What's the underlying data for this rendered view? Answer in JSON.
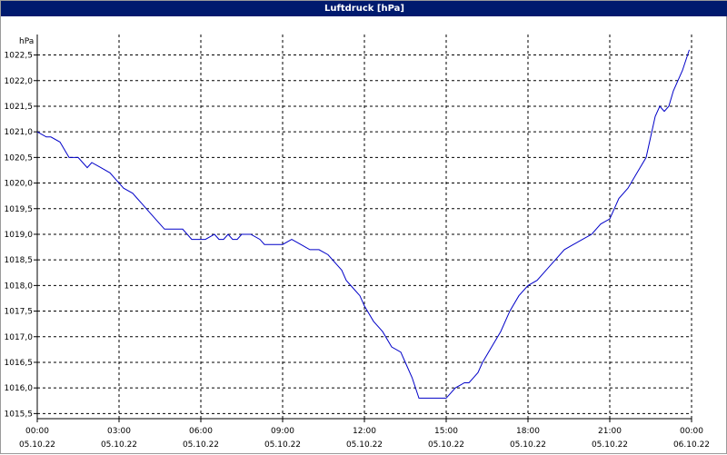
{
  "colors": {
    "titlebar_bg": "#001a6e",
    "line": "#0000c8",
    "grid": "#000000"
  },
  "chart_data": {
    "type": "line",
    "title": "Luftdruck [hPa]",
    "ylabel": "hPa",
    "grid": true,
    "ylim": [
      1015.5,
      1022.5
    ],
    "y_ticks": [
      "1015,5",
      "1016,0",
      "1016,5",
      "1017,0",
      "1017,5",
      "1018,0",
      "1018,5",
      "1019,0",
      "1019,5",
      "1020,0",
      "1020,5",
      "1021,0",
      "1021,5",
      "1022,0",
      "1022,5"
    ],
    "x_ticks": [
      {
        "time": "00:00",
        "date": "05.10.22"
      },
      {
        "time": "03:00",
        "date": "05.10.22"
      },
      {
        "time": "06:00",
        "date": "05.10.22"
      },
      {
        "time": "09:00",
        "date": "05.10.22"
      },
      {
        "time": "12:00",
        "date": "05.10.22"
      },
      {
        "time": "15:00",
        "date": "05.10.22"
      },
      {
        "time": "18:00",
        "date": "05.10.22"
      },
      {
        "time": "21:00",
        "date": "05.10.22"
      },
      {
        "time": "00:00",
        "date": "06.10.22"
      }
    ],
    "series": [
      {
        "x": [
          "00:00",
          "00:20",
          "00:30",
          "00:50",
          "01:10",
          "01:30",
          "01:50",
          "02:00",
          "02:20",
          "02:40",
          "03:00",
          "03:10",
          "03:30",
          "03:40",
          "03:50",
          "04:00",
          "04:10",
          "04:30",
          "04:40",
          "05:00",
          "05:20",
          "05:40",
          "05:50",
          "06:10",
          "06:30",
          "06:40",
          "06:50",
          "07:00",
          "07:10",
          "07:20",
          "07:30",
          "07:50",
          "08:10",
          "08:20",
          "08:40",
          "09:00",
          "09:20",
          "09:40",
          "10:00",
          "10:20",
          "10:40",
          "11:00",
          "11:10",
          "11:20",
          "11:40",
          "11:50",
          "12:00",
          "12:20",
          "12:40",
          "13:00",
          "13:20",
          "13:30",
          "13:45",
          "14:00",
          "14:20",
          "14:40",
          "14:50",
          "15:00",
          "15:20",
          "15:40",
          "15:50",
          "16:00",
          "16:10",
          "16:20",
          "16:40",
          "17:00",
          "17:20",
          "17:40",
          "18:00",
          "18:20",
          "18:40",
          "19:00",
          "19:20",
          "19:40",
          "20:00",
          "20:20",
          "20:40",
          "21:00",
          "21:10",
          "21:20",
          "21:40",
          "22:00",
          "22:20",
          "22:40",
          "22:50",
          "23:00",
          "23:10",
          "23:20",
          "23:40",
          "23:55"
        ],
        "y": [
          1021.0,
          1020.9,
          1020.9,
          1020.8,
          1020.5,
          1020.5,
          1020.3,
          1020.4,
          1020.3,
          1020.2,
          1020.0,
          1019.9,
          1019.8,
          1019.7,
          1019.6,
          1019.5,
          1019.4,
          1019.2,
          1019.1,
          1019.1,
          1019.1,
          1018.9,
          1018.9,
          1018.9,
          1019.0,
          1018.9,
          1018.9,
          1019.0,
          1018.9,
          1018.9,
          1019.0,
          1019.0,
          1018.9,
          1018.8,
          1018.8,
          1018.8,
          1018.9,
          1018.8,
          1018.7,
          1018.7,
          1018.6,
          1018.4,
          1018.3,
          1018.1,
          1017.9,
          1017.8,
          1017.6,
          1017.3,
          1017.1,
          1016.8,
          1016.7,
          1016.5,
          1016.2,
          1015.8,
          1015.8,
          1015.8,
          1015.8,
          1015.8,
          1016.0,
          1016.1,
          1016.1,
          1016.2,
          1016.3,
          1016.5,
          1016.8,
          1017.1,
          1017.5,
          1017.8,
          1018.0,
          1018.1,
          1018.3,
          1018.5,
          1018.7,
          1018.8,
          1018.9,
          1019.0,
          1019.2,
          1019.3,
          1019.5,
          1019.7,
          1019.9,
          1020.2,
          1020.5,
          1021.3,
          1021.5,
          1021.4,
          1021.5,
          1021.8,
          1022.2,
          1022.6
        ]
      }
    ]
  }
}
